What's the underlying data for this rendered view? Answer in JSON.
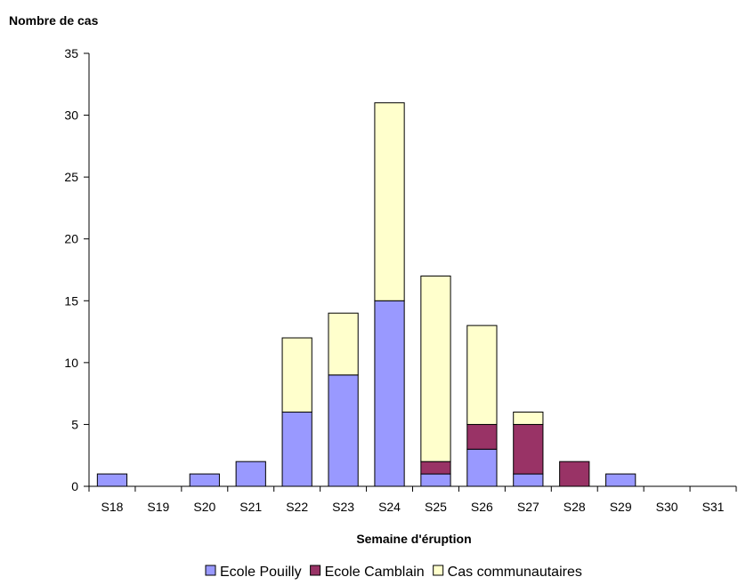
{
  "chart_data": {
    "type": "bar",
    "stacked": true,
    "categories": [
      "S18",
      "S19",
      "S20",
      "S21",
      "S22",
      "S23",
      "S24",
      "S25",
      "S26",
      "S27",
      "S28",
      "S29",
      "S30",
      "S31"
    ],
    "series": [
      {
        "name": "Ecole Pouilly",
        "color": "#9999ff",
        "values": [
          1,
          0,
          1,
          2,
          6,
          9,
          15,
          1,
          3,
          1,
          0,
          1,
          0,
          0
        ]
      },
      {
        "name": "Ecole Camblain",
        "color": "#993366",
        "values": [
          0,
          0,
          0,
          0,
          0,
          0,
          0,
          1,
          2,
          4,
          2,
          0,
          0,
          0
        ]
      },
      {
        "name": "Cas communautaires",
        "color": "#ffffcc",
        "values": [
          0,
          0,
          0,
          0,
          6,
          5,
          16,
          15,
          8,
          1,
          0,
          0,
          0,
          0
        ]
      }
    ],
    "ylabel": "Nombre de cas",
    "xlabel": "Semaine d'éruption",
    "ylim": [
      0,
      35
    ],
    "yticks": [
      0,
      5,
      10,
      15,
      20,
      25,
      30,
      35
    ],
    "grid": false,
    "legend_position": "bottom"
  }
}
